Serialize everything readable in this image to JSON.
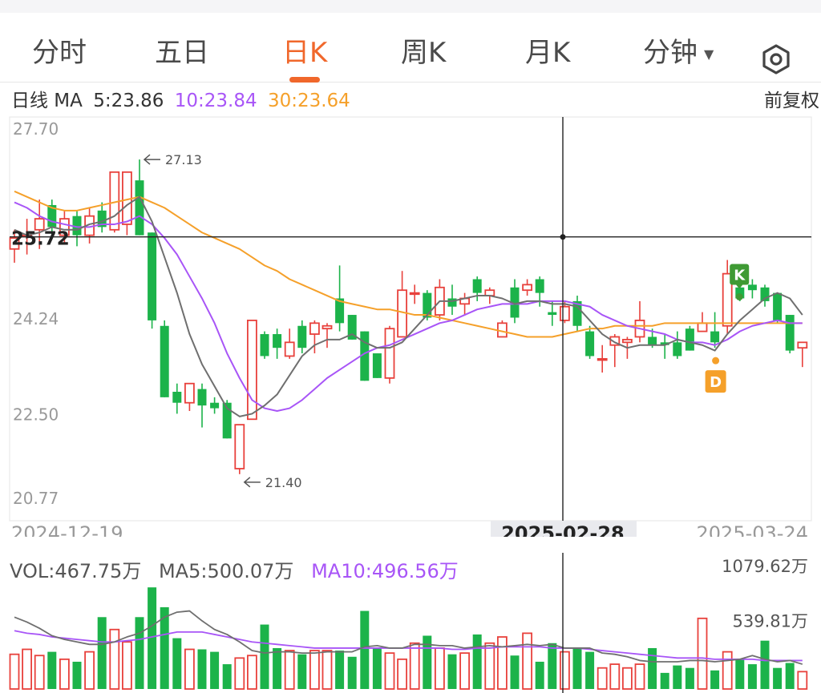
{
  "tabs": [
    {
      "label": "分时",
      "active": false
    },
    {
      "label": "五日",
      "active": false
    },
    {
      "label": "日K",
      "active": true
    },
    {
      "label": "周K",
      "active": false
    },
    {
      "label": "月K",
      "active": false
    },
    {
      "label": "分钟",
      "active": false
    }
  ],
  "settings_icon": "hexagon-settings-icon",
  "ma_legend": {
    "prefix": "日线 MA",
    "ma5": "5:23.86",
    "ma10": "10:23.84",
    "ma30": "30:23.64"
  },
  "adjust_label": "前复权",
  "colors": {
    "up": "#e8413c",
    "down": "#1cb34a",
    "ma5": "#6f6f6f",
    "ma10": "#a855f7",
    "ma30": "#f5a02a",
    "accent": "#f0672b",
    "marker_k": "#3f9a34",
    "marker_d": "#f5a02a"
  },
  "chart_data": {
    "type": "candlestick",
    "y_axis_labels": [
      "27.70",
      "24.24",
      "22.50",
      "20.77"
    ],
    "y_range": [
      20.77,
      27.7
    ],
    "x_axis_labels": [
      "2024-12-19",
      "2025-02-28",
      "2025-03-24"
    ],
    "crosshair": {
      "price": "25.72",
      "date": "2025-02-28",
      "candle_index": 45
    },
    "annotations": {
      "high": "27.13",
      "low": "21.40",
      "marker_k": "K",
      "marker_d": "D"
    },
    "candles": [
      [
        25.5,
        25.7,
        25.25,
        25.85
      ],
      [
        25.75,
        25.75,
        25.4,
        26.05
      ],
      [
        25.85,
        26.05,
        25.5,
        26.4
      ],
      [
        26.3,
        25.9,
        25.75,
        26.4
      ],
      [
        25.75,
        26.05,
        25.6,
        26.2
      ],
      [
        26.1,
        25.75,
        25.55,
        26.2
      ],
      [
        25.75,
        26.1,
        25.6,
        26.25
      ],
      [
        26.2,
        25.9,
        25.8,
        26.35
      ],
      [
        25.85,
        26.9,
        25.8,
        26.9
      ],
      [
        25.95,
        26.9,
        25.75,
        26.9
      ],
      [
        26.75,
        25.75,
        25.75,
        27.13
      ],
      [
        25.8,
        24.2,
        24.05,
        25.8
      ],
      [
        24.1,
        22.8,
        22.8,
        24.2
      ],
      [
        22.9,
        22.7,
        22.5,
        23.05
      ],
      [
        22.7,
        23.05,
        22.55,
        23.05
      ],
      [
        22.95,
        22.65,
        22.25,
        23.05
      ],
      [
        22.7,
        22.6,
        22.5,
        22.8
      ],
      [
        22.7,
        22.05,
        22.05,
        22.75
      ],
      [
        21.5,
        22.3,
        21.4,
        22.3
      ],
      [
        22.4,
        24.2,
        22.4,
        24.2
      ],
      [
        23.95,
        23.55,
        23.5,
        24.0
      ],
      [
        23.95,
        23.7,
        23.5,
        24.05
      ],
      [
        23.55,
        23.8,
        23.5,
        24.05
      ],
      [
        24.1,
        23.7,
        23.6,
        24.2
      ],
      [
        23.95,
        24.15,
        23.6,
        24.2
      ],
      [
        24.05,
        24.1,
        23.7,
        24.15
      ],
      [
        24.6,
        24.15,
        24.0,
        25.2
      ],
      [
        24.3,
        23.85,
        23.85,
        24.3
      ],
      [
        24.0,
        23.1,
        23.1,
        24.0
      ],
      [
        23.6,
        23.15,
        23.15,
        23.6
      ],
      [
        23.15,
        24.05,
        23.05,
        24.1
      ],
      [
        23.9,
        24.75,
        23.9,
        25.1
      ],
      [
        24.7,
        24.7,
        24.5,
        24.85
      ],
      [
        24.7,
        24.25,
        24.2,
        24.75
      ],
      [
        24.3,
        24.8,
        24.2,
        24.95
      ],
      [
        24.6,
        24.45,
        24.3,
        24.85
      ],
      [
        24.5,
        24.6,
        24.3,
        24.7
      ],
      [
        24.95,
        24.7,
        24.55,
        25.0
      ],
      [
        24.65,
        24.75,
        24.5,
        24.8
      ],
      [
        23.9,
        24.15,
        23.9,
        24.2
      ],
      [
        24.8,
        24.25,
        24.15,
        24.95
      ],
      [
        24.75,
        24.85,
        24.65,
        24.95
      ],
      [
        24.95,
        24.7,
        24.45,
        25.0
      ],
      [
        24.35,
        24.3,
        24.1,
        24.55
      ],
      [
        24.2,
        24.45,
        24.15,
        24.55
      ],
      [
        24.55,
        24.1,
        24.0,
        24.65
      ],
      [
        24.0,
        23.55,
        23.5,
        24.1
      ],
      [
        23.5,
        23.5,
        23.25,
        23.75
      ],
      [
        23.75,
        23.9,
        23.35,
        23.95
      ],
      [
        23.8,
        23.85,
        23.5,
        23.9
      ],
      [
        23.9,
        24.2,
        23.8,
        24.55
      ],
      [
        23.9,
        23.75,
        23.7,
        24.05
      ],
      [
        23.8,
        23.75,
        23.5,
        23.95
      ],
      [
        23.8,
        23.55,
        23.5,
        24.0
      ],
      [
        24.05,
        23.65,
        23.65,
        24.1
      ],
      [
        24.0,
        24.15,
        24.0,
        24.35
      ],
      [
        24.0,
        23.8,
        23.7,
        24.35
      ],
      [
        24.1,
        25.05,
        23.95,
        25.3
      ],
      [
        24.8,
        24.6,
        24.55,
        24.9
      ],
      [
        24.85,
        24.75,
        24.6,
        24.95
      ],
      [
        24.8,
        24.55,
        24.45,
        24.85
      ],
      [
        24.7,
        24.2,
        24.15,
        24.7
      ],
      [
        24.3,
        23.65,
        23.6,
        24.3
      ],
      [
        23.7,
        23.8,
        23.35,
        23.8
      ]
    ],
    "ma5": [
      25.85,
      25.75,
      25.8,
      25.9,
      25.85,
      25.85,
      25.95,
      26.0,
      26.1,
      26.3,
      26.45,
      26.0,
      25.35,
      24.7,
      23.95,
      23.4,
      23.0,
      22.6,
      22.45,
      22.5,
      22.65,
      22.85,
      23.2,
      23.55,
      23.75,
      23.85,
      23.85,
      23.95,
      23.8,
      23.7,
      23.7,
      23.8,
      24.05,
      24.3,
      24.55,
      24.55,
      24.6,
      24.65,
      24.65,
      24.6,
      24.5,
      24.55,
      24.55,
      24.5,
      24.5,
      24.45,
      24.2,
      23.95,
      23.8,
      23.7,
      23.75,
      23.75,
      23.75,
      23.85,
      23.8,
      23.75,
      23.65,
      23.95,
      24.2,
      24.4,
      24.6,
      24.7,
      24.6,
      24.3
    ],
    "ma10": [
      26.35,
      26.25,
      26.1,
      26.0,
      25.95,
      25.9,
      25.9,
      25.95,
      25.95,
      26.0,
      26.1,
      25.95,
      25.7,
      25.4,
      25.0,
      24.6,
      24.15,
      23.6,
      23.15,
      22.75,
      22.6,
      22.55,
      22.6,
      22.75,
      22.95,
      23.15,
      23.3,
      23.45,
      23.6,
      23.7,
      23.75,
      23.85,
      23.95,
      24.05,
      24.15,
      24.2,
      24.3,
      24.4,
      24.45,
      24.5,
      24.5,
      24.5,
      24.55,
      24.55,
      24.55,
      24.5,
      24.45,
      24.3,
      24.2,
      24.1,
      24.05,
      24.0,
      23.95,
      23.85,
      23.8,
      23.8,
      23.75,
      23.85,
      24.0,
      24.1,
      24.15,
      24.2,
      24.15,
      24.15
    ],
    "ma30": [
      26.55,
      26.45,
      26.35,
      26.25,
      26.2,
      26.2,
      26.25,
      26.3,
      26.35,
      26.4,
      26.45,
      26.35,
      26.25,
      26.1,
      25.95,
      25.8,
      25.7,
      25.6,
      25.5,
      25.35,
      25.2,
      25.1,
      24.95,
      24.85,
      24.75,
      24.65,
      24.55,
      24.5,
      24.45,
      24.4,
      24.4,
      24.35,
      24.3,
      24.3,
      24.25,
      24.2,
      24.15,
      24.1,
      24.05,
      24.0,
      23.95,
      23.9,
      23.9,
      23.9,
      23.95,
      24.0,
      24.05,
      24.05,
      24.1,
      24.1,
      24.1,
      24.1,
      24.15,
      24.15,
      24.15,
      24.15,
      24.15,
      24.15,
      24.15,
      24.15,
      24.15,
      24.15,
      24.15,
      24.15
    ],
    "volume": {
      "legend": {
        "vol": "VOL:467.75万",
        "ma5": "MA5:500.07万",
        "ma10": "MA10:496.56万"
      },
      "axis_labels": [
        "1079.62万",
        "539.81万"
      ],
      "max": 1079.62,
      "values": [
        280,
        320,
        270,
        300,
        240,
        220,
        300,
        580,
        480,
        380,
        580,
        820,
        660,
        410,
        320,
        320,
        300,
        200,
        250,
        270,
        520,
        330,
        310,
        280,
        310,
        310,
        310,
        260,
        630,
        330,
        290,
        240,
        370,
        430,
        330,
        280,
        290,
        440,
        370,
        420,
        270,
        450,
        220,
        370,
        300,
        330,
        300,
        170,
        200,
        170,
        200,
        330,
        130,
        190,
        170,
        570,
        150,
        300,
        240,
        200,
        390,
        170,
        210,
        140
      ],
      "ma5": [
        580,
        540,
        490,
        430,
        400,
        380,
        360,
        360,
        380,
        420,
        450,
        510,
        580,
        620,
        630,
        550,
        480,
        440,
        380,
        310,
        290,
        300,
        300,
        290,
        290,
        300,
        300,
        300,
        340,
        350,
        330,
        330,
        360,
        360,
        350,
        350,
        330,
        340,
        350,
        340,
        350,
        360,
        350,
        360,
        330,
        330,
        330,
        290,
        280,
        260,
        230,
        220,
        220,
        220,
        230,
        230,
        220,
        230,
        240,
        270,
        240,
        220,
        230,
        200
      ],
      "ma10": [
        470,
        450,
        440,
        420,
        410,
        400,
        390,
        380,
        380,
        390,
        400,
        420,
        440,
        460,
        460,
        460,
        440,
        420,
        400,
        380,
        370,
        360,
        350,
        340,
        330,
        330,
        330,
        330,
        330,
        330,
        330,
        330,
        330,
        330,
        330,
        320,
        320,
        330,
        330,
        340,
        340,
        340,
        340,
        330,
        330,
        330,
        320,
        310,
        300,
        290,
        280,
        270,
        260,
        250,
        250,
        250,
        240,
        240,
        240,
        240,
        230,
        230,
        230,
        230
      ]
    }
  }
}
